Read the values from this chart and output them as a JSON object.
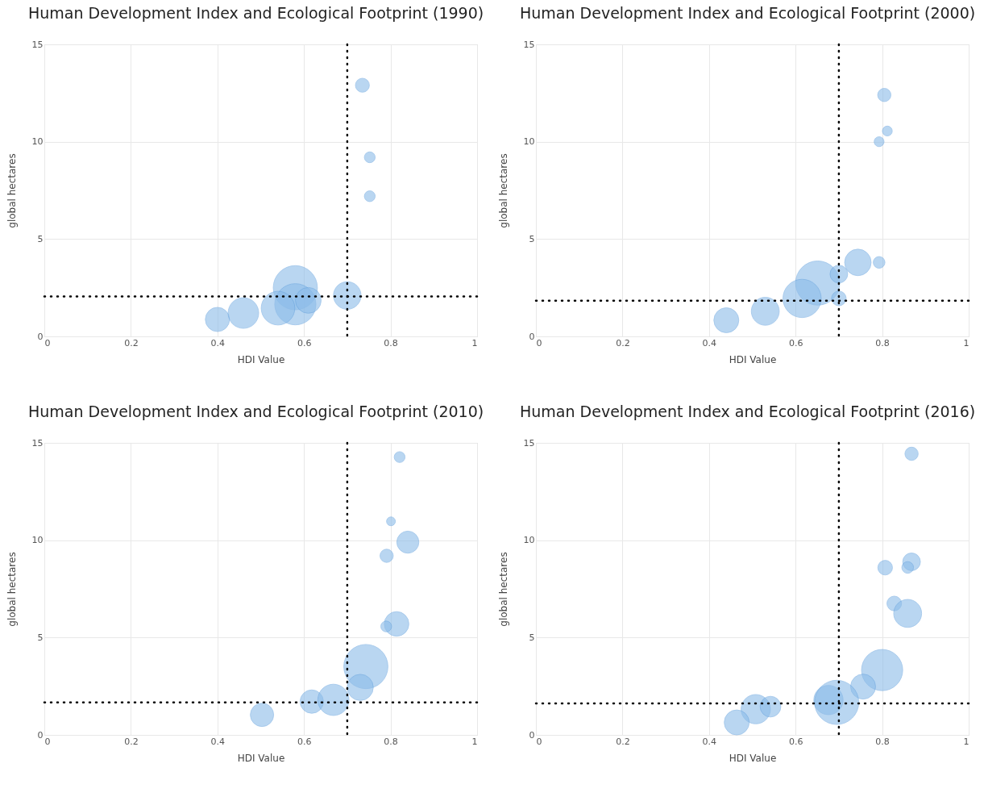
{
  "chart_data": [
    {
      "type": "bubble",
      "title": "Human Development Index and Ecological Footprint (1990)",
      "xlabel": "HDI Value",
      "ylabel": "global hectares",
      "color": "#8cbce9",
      "marker": "circle",
      "grid": true,
      "xlim": [
        0,
        1
      ],
      "ylim": [
        0,
        15
      ],
      "xticks": [
        0,
        0.2,
        0.4,
        0.6,
        0.8,
        1
      ],
      "yticks": [
        0,
        5,
        10,
        15
      ],
      "x": [
        0.735,
        0.752,
        0.752,
        0.7,
        0.4,
        0.46,
        0.58,
        0.58,
        0.54,
        0.61
      ],
      "values": [
        12.9,
        9.2,
        7.2,
        2.1,
        0.87,
        1.2,
        2.5,
        1.65,
        1.45,
        1.85
      ],
      "sizes": [
        0.1,
        0.06,
        0.06,
        0.39,
        0.3,
        0.48,
        1,
        0.87,
        0.58,
        0.34
      ],
      "ref_lines": [
        {
          "axis": "x",
          "value": 0.7,
          "line_style": "dotted"
        },
        {
          "axis": "y",
          "value": 2.05,
          "line_style": "dotted"
        }
      ]
    },
    {
      "type": "bubble",
      "title": "Human Development Index and Ecological Footprint (2000)",
      "xlabel": "HDI Value",
      "ylabel": "global hectares",
      "color": "#8cbce9",
      "marker": "circle",
      "grid": true,
      "xlim": [
        0,
        1
      ],
      "ylim": [
        0,
        15
      ],
      "xticks": [
        0,
        0.2,
        0.4,
        0.6,
        0.8,
        1
      ],
      "yticks": [
        0,
        5,
        10,
        15
      ],
      "x": [
        0.805,
        0.812,
        0.793,
        0.744,
        0.793,
        0.44,
        0.53,
        0.651,
        0.615,
        0.7,
        0.7
      ],
      "values": [
        12.4,
        10.55,
        10.0,
        3.8,
        3.8,
        0.83,
        1.29,
        2.74,
        1.95,
        1.95,
        3.2
      ],
      "sizes": [
        0.09,
        0.05,
        0.05,
        0.36,
        0.07,
        0.32,
        0.4,
        1,
        0.75,
        0.11,
        0.16
      ],
      "ref_lines": [
        {
          "axis": "x",
          "value": 0.7,
          "line_style": "dotted"
        },
        {
          "axis": "y",
          "value": 1.83,
          "line_style": "dotted"
        }
      ]
    },
    {
      "type": "bubble",
      "title": "Human Development Index and Ecological Footprint (2010)",
      "xlabel": "HDI Value",
      "ylabel": "global hectares",
      "color": "#8cbce9",
      "marker": "circle",
      "grid": true,
      "xlim": [
        0,
        1
      ],
      "ylim": [
        0,
        15
      ],
      "xticks": [
        0,
        0.2,
        0.4,
        0.6,
        0.8,
        1
      ],
      "yticks": [
        0,
        5,
        10,
        15
      ],
      "x": [
        0.821,
        0.801,
        0.84,
        0.791,
        0.814,
        0.79,
        0.503,
        0.618,
        0.668,
        0.743,
        0.73
      ],
      "values": [
        14.27,
        10.97,
        9.9,
        9.2,
        5.7,
        5.57,
        1.03,
        1.71,
        1.8,
        3.51,
        2.44
      ],
      "sizes": [
        0.06,
        0.04,
        0.25,
        0.09,
        0.31,
        0.06,
        0.28,
        0.28,
        0.5,
        1,
        0.35
      ],
      "ref_lines": [
        {
          "axis": "x",
          "value": 0.7,
          "line_style": "dotted"
        },
        {
          "axis": "y",
          "value": 1.67,
          "line_style": "dotted"
        }
      ]
    },
    {
      "type": "bubble",
      "title": "Human Development Index and Ecological Footprint (2016)",
      "xlabel": "HDI Value",
      "ylabel": "global hectares",
      "color": "#8cbce9",
      "marker": "circle",
      "grid": true,
      "xlim": [
        0,
        1
      ],
      "ylim": [
        0,
        15
      ],
      "xticks": [
        0,
        0.2,
        0.4,
        0.6,
        0.8,
        1
      ],
      "yticks": [
        0,
        5,
        10,
        15
      ],
      "x": [
        0.868,
        0.807,
        0.868,
        0.859,
        0.828,
        0.859,
        0.8,
        0.756,
        0.676,
        0.695,
        0.508,
        0.542,
        0.464
      ],
      "values": [
        14.44,
        8.59,
        8.89,
        8.6,
        6.75,
        6.24,
        3.33,
        2.48,
        1.79,
        1.67,
        1.32,
        1.45,
        0.64
      ],
      "sizes": [
        0.09,
        0.11,
        0.16,
        0.07,
        0.11,
        0.4,
        0.87,
        0.32,
        0.44,
        1,
        0.44,
        0.22,
        0.32
      ],
      "ref_lines": [
        {
          "axis": "x",
          "value": 0.7,
          "line_style": "dotted"
        },
        {
          "axis": "y",
          "value": 1.62,
          "line_style": "dotted"
        }
      ]
    }
  ]
}
